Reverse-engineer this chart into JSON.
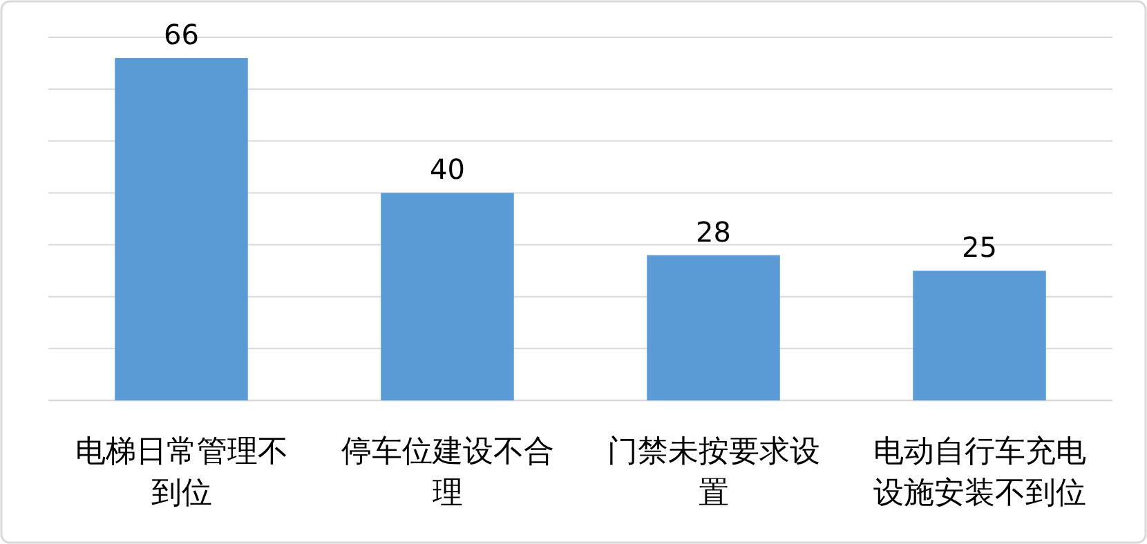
{
  "chart_data": {
    "type": "bar",
    "categories": [
      "电梯日常管理不到位",
      "停车位建设不合理",
      "门禁未按要求设置",
      "电动自行车充电设施安装不到位"
    ],
    "values": [
      66,
      40,
      28,
      25
    ],
    "color": "#5b9bd5",
    "ylim": [
      0,
      70
    ],
    "yticks": [
      {
        "value": 0,
        "label": null
      },
      {
        "value": 10,
        "label": null
      },
      {
        "value": 20,
        "label": null
      },
      {
        "value": 30,
        "label": null
      },
      {
        "value": 40,
        "label": null
      },
      {
        "value": 50,
        "label": null
      },
      {
        "value": 60,
        "label": null
      },
      {
        "value": 70,
        "label": null
      }
    ],
    "grid": "y",
    "data_labels": true,
    "tick_labels": "x"
  }
}
